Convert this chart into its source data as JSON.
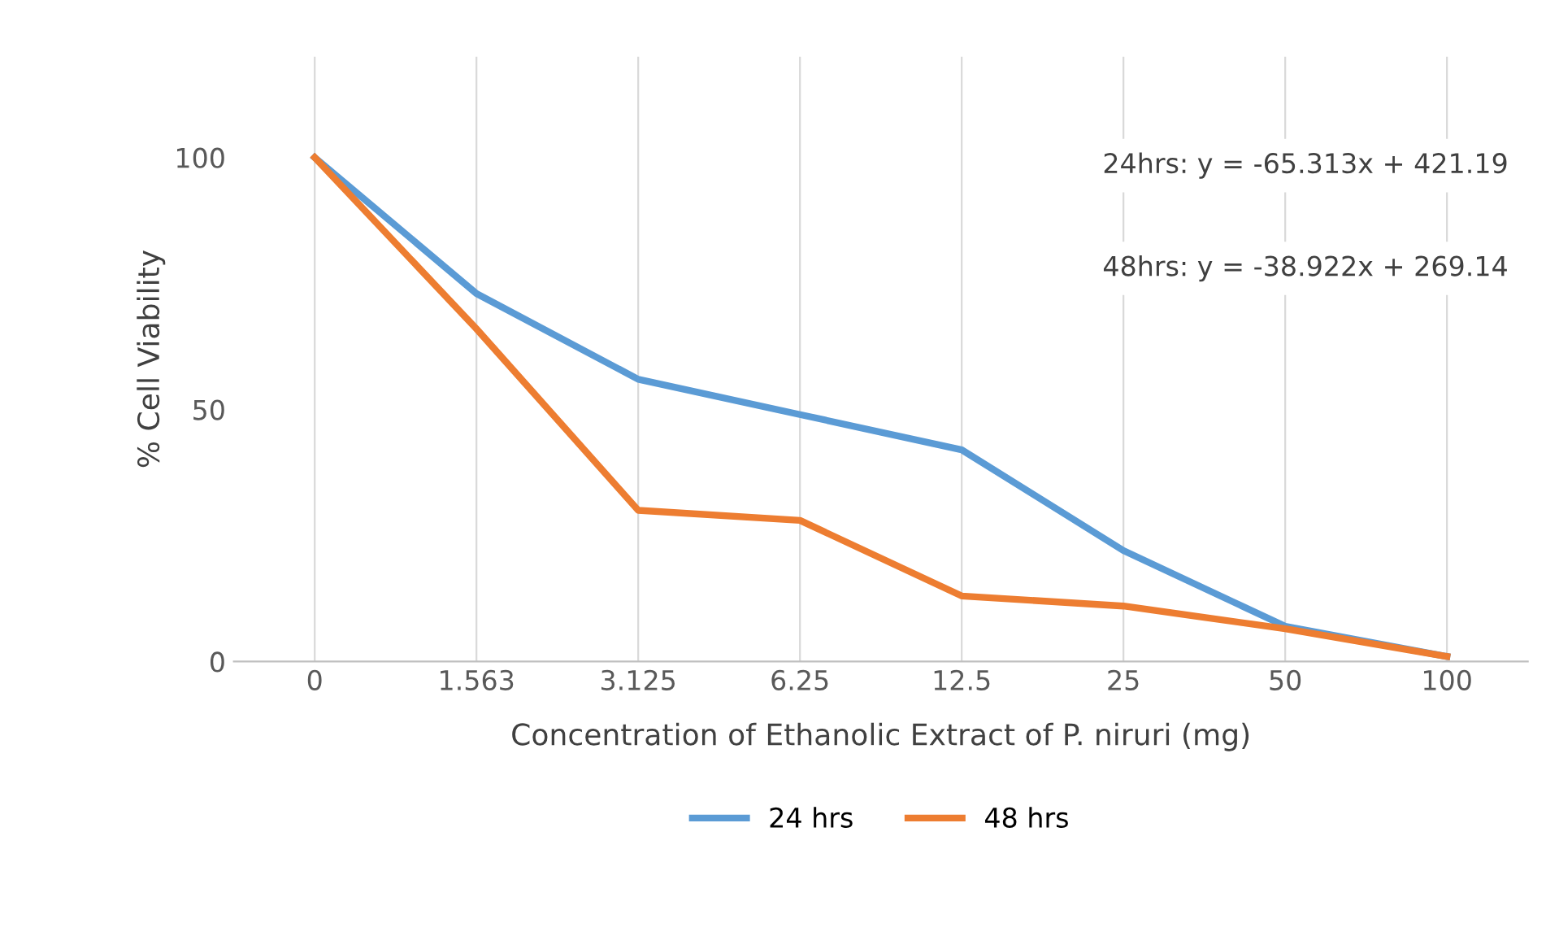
{
  "chart_data": {
    "type": "line",
    "xlabel": "Concentration of Ethanolic Extract of P. niruri (mg)",
    "ylabel": "% Cell Viability",
    "categories": [
      "0",
      "1.563",
      "3.125",
      "6.25",
      "12.5",
      "25",
      "50",
      "100"
    ],
    "series": [
      {
        "name": "24 hrs",
        "color": "#5b9bd5",
        "values": [
          100,
          73,
          56,
          49,
          42,
          22,
          7,
          1
        ]
      },
      {
        "name": "48 hrs",
        "color": "#ed7d31",
        "values": [
          100,
          66,
          30,
          28,
          13,
          11,
          6.5,
          1
        ]
      }
    ],
    "ylim": [
      0,
      120
    ],
    "yticks": [
      0,
      50,
      100
    ],
    "grid": "x",
    "legend": "bottom",
    "marker": "none",
    "line_style": "solid",
    "annotations": [
      "24hrs: y = -65.313x + 421.19",
      "48hrs: y = -38.922x + 269.14"
    ]
  }
}
